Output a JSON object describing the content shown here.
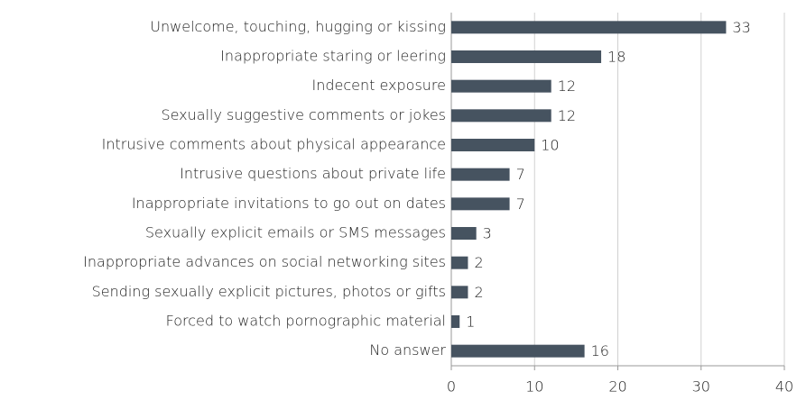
{
  "chart_data": {
    "type": "bar",
    "orientation": "horizontal",
    "categories": [
      "Unwelcome, touching, hugging or kissing",
      "Inappropriate staring or leering",
      "Indecent exposure",
      "Sexually suggestive comments or jokes",
      "Intrusive comments about physical appearance",
      "Intrusive questions about private life",
      "Inappropriate invitations to go out on dates",
      "Sexually explicit emails or SMS messages",
      "Inappropriate advances on social networking sites",
      "Sending sexually explicit pictures, photos or gifts",
      "Forced to watch pornographic material",
      "No answer"
    ],
    "values": [
      33,
      18,
      12,
      12,
      10,
      7,
      7,
      3,
      2,
      2,
      1,
      16
    ],
    "color": "#465360",
    "xlim": [
      0,
      40
    ],
    "xticks": [
      0,
      10,
      20,
      30,
      40
    ],
    "grid": true
  }
}
